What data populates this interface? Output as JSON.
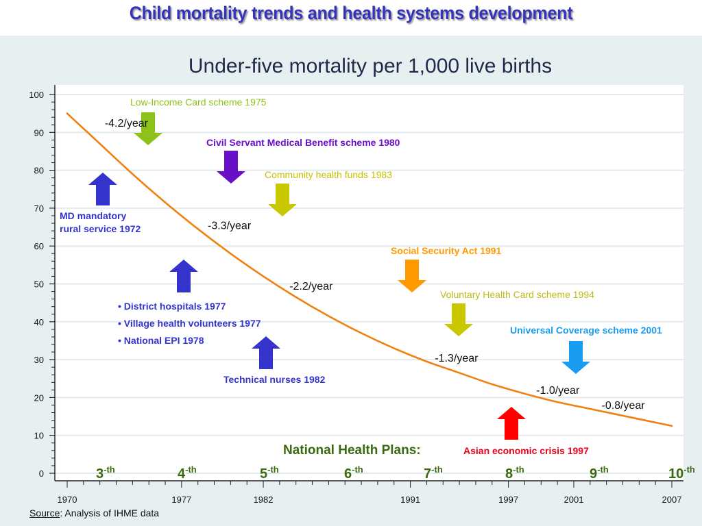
{
  "page": {
    "title": "Child mortality trends and health systems development",
    "source_label": "Source",
    "source_text": ": Analysis of IHME data"
  },
  "chart_data": {
    "type": "line",
    "title": "Under-five mortality per 1,000 live births",
    "xlabel": "",
    "ylabel": "",
    "xlim": [
      1970,
      2007
    ],
    "ylim": [
      0,
      100
    ],
    "yticks": [
      0,
      10,
      20,
      30,
      40,
      50,
      60,
      70,
      80,
      90,
      100
    ],
    "xticks": [
      1970,
      1977,
      1982,
      1991,
      1997,
      2001,
      2007
    ],
    "grid": true,
    "series": [
      {
        "name": "Under-five mortality",
        "color": "#f08010",
        "x": [
          1970,
          1972,
          1974,
          1976,
          1978,
          1980,
          1982,
          1984,
          1986,
          1988,
          1990,
          1992,
          1994,
          1996,
          1998,
          2000,
          2002,
          2004,
          2007
        ],
        "y": [
          95,
          87,
          79,
          71.5,
          64.5,
          58,
          52,
          46.5,
          41.5,
          37,
          33,
          29.5,
          26.5,
          23.5,
          21,
          18.8,
          17,
          15.2,
          12.5
        ]
      }
    ],
    "rate_labels": [
      {
        "text": "-4.2/year",
        "x": 1972.3,
        "y": 91.5
      },
      {
        "text": "-3.3/year",
        "x": 1978.6,
        "y": 64.5
      },
      {
        "text": "-2.2/year",
        "x": 1983.6,
        "y": 48.5
      },
      {
        "text": "-1.3/year",
        "x": 1992.5,
        "y": 29.5
      },
      {
        "text": "-1.0/year",
        "x": 1998.7,
        "y": 21
      },
      {
        "text": "-0.8/year",
        "x": 2002.7,
        "y": 17
      }
    ],
    "events": [
      {
        "label": "Low-Income Card scheme 1975",
        "year": 1975,
        "direction": "down",
        "color": "#8cc21a",
        "bold": false
      },
      {
        "label": "Civil Servant Medical Benefit scheme 1980",
        "year": 1980,
        "direction": "down",
        "color": "#6a0fc8",
        "bold": true
      },
      {
        "label": "Community health funds 1983",
        "year": 1983,
        "direction": "down",
        "color": "#c9c800",
        "bold": false
      },
      {
        "label": "MD mandatory rural service 1972",
        "year": 1972,
        "direction": "up",
        "color": "#3434cc",
        "bold": true
      },
      {
        "label": "District hospitals 1977 / Village health volunteers 1977 / National EPI 1978",
        "year": 1977,
        "direction": "up",
        "color": "#3434cc",
        "bold": true
      },
      {
        "label": "Technical nurses 1982",
        "year": 1982,
        "direction": "up",
        "color": "#3434cc",
        "bold": true
      },
      {
        "label": "Social Security Act 1991",
        "year": 1991,
        "direction": "down",
        "color": "#ff9a00",
        "bold": true
      },
      {
        "label": "Voluntary Health Card scheme 1994",
        "year": 1994,
        "direction": "down",
        "color": "#c9c800",
        "bold": false
      },
      {
        "label": "Universal Coverage scheme 2001",
        "year": 2001,
        "direction": "down",
        "color": "#1a9cf0",
        "bold": true
      },
      {
        "label": "Asian economic crisis 1997",
        "year": 1997,
        "direction": "up",
        "color": "#ff0000",
        "bold": true
      }
    ],
    "plans_label": "National Health Plans:",
    "plans": [
      {
        "num": "3",
        "sup": "-th"
      },
      {
        "num": "4",
        "sup": "-th"
      },
      {
        "num": "5",
        "sup": "-th"
      },
      {
        "num": "6",
        "sup": "-th"
      },
      {
        "num": "7",
        "sup": "-th"
      },
      {
        "num": "8",
        "sup": "-th"
      },
      {
        "num": "9",
        "sup": "-th"
      },
      {
        "num": "10",
        "sup": "-th"
      }
    ]
  },
  "annotations": {
    "low_income": "Low-Income Card scheme 1975",
    "civil_servant": "Civil Servant Medical Benefit scheme 1980",
    "community": "Community health funds 1983",
    "md_line1": "MD mandatory",
    "md_line2": "rural service 1972",
    "bullet1": "• District hospitals 1977",
    "bullet2": "• Village health volunteers 1977",
    "bullet3": "• National EPI 1978",
    "technical": "Technical nurses 1982",
    "social": "Social Security Act 1991",
    "voluntary": "Voluntary Health Card scheme 1994",
    "universal": "Universal Coverage scheme 2001",
    "asian": "Asian economic crisis 1997"
  }
}
